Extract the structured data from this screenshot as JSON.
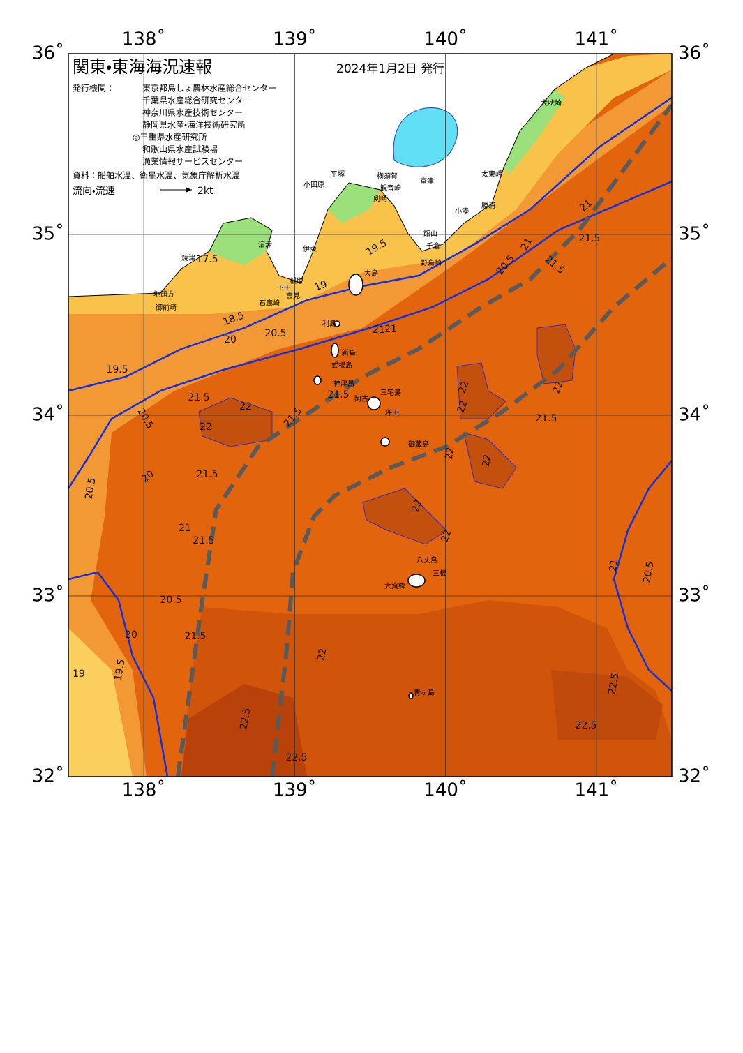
{
  "header": {
    "title": "関東・東海海況速報",
    "date": "2024年1月2日 発行"
  },
  "issuers": {
    "label": "発行機関：",
    "names": [
      "東京都島しょ農林水産総合センター",
      "千葉県水産総合研究センター",
      "神奈川県水産技術センター",
      "静岡県水産・海洋技術研究所",
      "◎三重県水産研究所",
      "和歌山県水産試験場",
      "漁業情報サービスセンター"
    ]
  },
  "source": "資料：船舶水温、衛星水温、気象庁解析水温",
  "legend": {
    "label": "流向・流速",
    "unit": "2kt"
  },
  "axes": {
    "lon_range": [
      137.5,
      141.5
    ],
    "lat_range": [
      32,
      36
    ],
    "lon_ticks": [
      {
        "value": 138,
        "label": "138˚"
      },
      {
        "value": 139,
        "label": "139˚"
      },
      {
        "value": 140,
        "label": "140˚"
      },
      {
        "value": 141,
        "label": "141˚"
      }
    ],
    "lat_ticks": [
      {
        "value": 32,
        "label": "32˚"
      },
      {
        "value": 33,
        "label": "33˚"
      },
      {
        "value": 34,
        "label": "34˚"
      },
      {
        "value": 35,
        "label": "35˚"
      },
      {
        "value": 36,
        "label": "36˚"
      }
    ]
  },
  "places": [
    "犬吠埼",
    "太東岬",
    "勝浦",
    "小湊",
    "富津",
    "館山",
    "千倉",
    "野島崎",
    "観音崎",
    "剣崎",
    "横須賀",
    "平塚",
    "小田原",
    "大島",
    "利島",
    "新島",
    "式根島",
    "神津島",
    "三宅島",
    "阿古",
    "坪田",
    "御蔵島",
    "八丈島",
    "三根",
    "大賀郷",
    "青ヶ島",
    "沼津",
    "焼津",
    "伊東",
    "稲取",
    "下田",
    "雲見",
    "石廊崎",
    "御前崎",
    "地頭方"
  ],
  "contour_labels": [
    "17.5",
    "18.5",
    "19",
    "19.5",
    "20",
    "20.5",
    "21",
    "21.5",
    "22",
    "20.5",
    "20",
    "21",
    "21.5",
    "19.5",
    "20.5",
    "21",
    "21.5",
    "22",
    "22",
    "22",
    "22",
    "21.5",
    "21.5",
    "21.5",
    "21",
    "20.5",
    "21.5",
    "22",
    "22",
    "22",
    "22",
    "22.5",
    "22.5",
    "22.5",
    "22.5",
    "19",
    "19.5",
    "20",
    "21.5",
    "20.5",
    "21.5",
    "22",
    "21",
    "20.5",
    "21"
  ]
}
